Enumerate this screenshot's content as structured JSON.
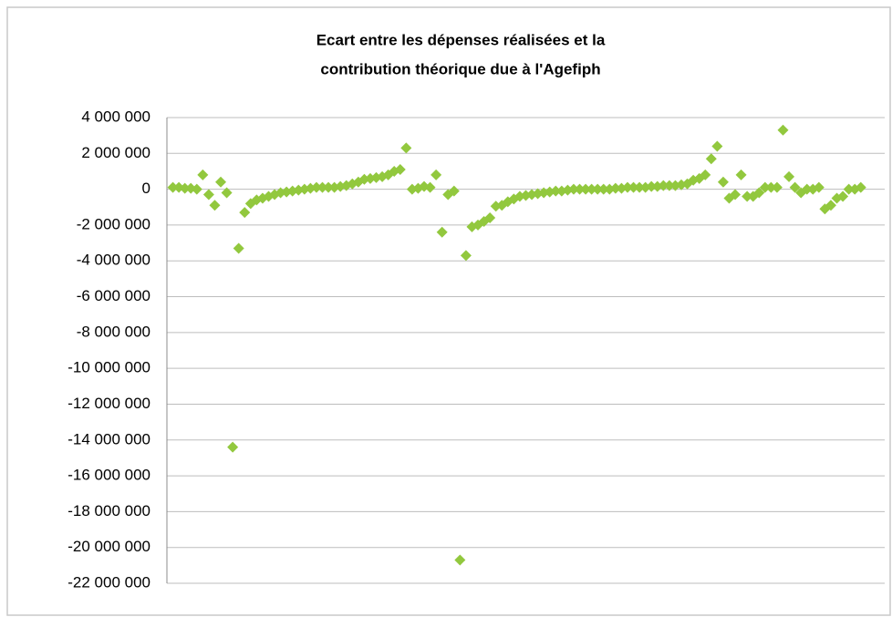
{
  "chart_data": {
    "type": "scatter",
    "title": [
      "Ecart entre les dépenses réalisées et la",
      "contribution théorique due à l'Agefiph"
    ],
    "color": "#92c83e",
    "x": [
      1,
      2,
      3,
      4,
      5,
      6,
      7,
      8,
      9,
      10,
      11,
      12,
      13,
      14,
      15,
      16,
      17,
      18,
      19,
      20,
      21,
      22,
      23,
      24,
      25,
      26,
      27,
      28,
      29,
      30,
      31,
      32,
      33,
      34,
      35,
      36,
      37,
      38,
      39,
      40,
      41,
      42,
      43,
      44,
      45,
      46,
      47,
      48,
      49,
      50,
      51,
      52,
      53,
      54,
      55,
      56,
      57,
      58,
      59,
      60,
      61,
      62,
      63,
      64,
      65,
      66,
      67,
      68,
      69,
      70,
      71,
      72,
      73,
      74,
      75,
      76,
      77,
      78,
      79,
      80,
      81,
      82,
      83,
      84,
      85,
      86,
      87,
      88,
      89,
      90,
      91,
      92,
      93,
      94,
      95,
      96,
      97,
      98,
      99,
      100,
      101,
      102,
      103,
      104,
      105,
      106,
      107,
      108,
      109,
      110,
      111,
      112,
      113,
      114,
      115,
      116
    ],
    "values": [
      100000,
      100000,
      50000,
      50000,
      0,
      800000,
      -300000,
      -900000,
      400000,
      -200000,
      -14400000,
      -3300000,
      -1300000,
      -800000,
      -600000,
      -500000,
      -400000,
      -300000,
      -200000,
      -150000,
      -100000,
      -50000,
      0,
      50000,
      100000,
      100000,
      100000,
      100000,
      150000,
      200000,
      300000,
      400000,
      550000,
      600000,
      650000,
      700000,
      800000,
      1000000,
      1100000,
      2300000,
      0,
      50000,
      150000,
      100000,
      800000,
      -2400000,
      -300000,
      -100000,
      -20700000,
      -3700000,
      -2100000,
      -2000000,
      -1800000,
      -1600000,
      -950000,
      -900000,
      -700000,
      -550000,
      -400000,
      -350000,
      -300000,
      -250000,
      -200000,
      -150000,
      -100000,
      -100000,
      -50000,
      0,
      0,
      0,
      0,
      0,
      0,
      0,
      50000,
      50000,
      100000,
      100000,
      100000,
      100000,
      150000,
      150000,
      200000,
      200000,
      200000,
      250000,
      300000,
      500000,
      600000,
      800000,
      1700000,
      2400000,
      400000,
      -500000,
      -300000,
      800000,
      -400000,
      -400000,
      -200000,
      100000,
      100000,
      100000,
      3300000,
      700000,
      100000,
      -200000,
      0,
      0,
      100000,
      -1100000,
      -900000,
      -500000,
      -400000,
      0,
      0,
      100000
    ],
    "xlim": [
      0,
      120
    ],
    "ylim": [
      -22000000,
      4000000
    ],
    "yticks": [
      {
        "value": -22000000,
        "label": "-22 000 000"
      },
      {
        "value": -20000000,
        "label": "-20 000 000"
      },
      {
        "value": -18000000,
        "label": "-18 000 000"
      },
      {
        "value": -16000000,
        "label": "-16 000 000"
      },
      {
        "value": -14000000,
        "label": "-14 000 000"
      },
      {
        "value": -12000000,
        "label": "-12 000 000"
      },
      {
        "value": -10000000,
        "label": "-10 000 000"
      },
      {
        "value": -8000000,
        "label": "-8 000 000"
      },
      {
        "value": -6000000,
        "label": "-6 000 000"
      },
      {
        "value": -4000000,
        "label": "-4 000 000"
      },
      {
        "value": -2000000,
        "label": "-2 000 000"
      },
      0,
      {
        "value": 2000000,
        "label": "2 000 000"
      },
      {
        "value": 4000000,
        "label": "4 000 000"
      }
    ],
    "grid": true
  }
}
